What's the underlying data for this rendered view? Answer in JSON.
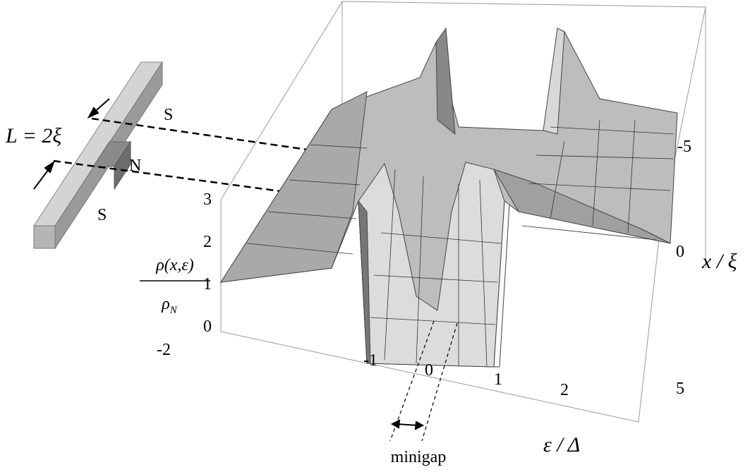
{
  "wire": {
    "top_label": "S",
    "middle_label": "N",
    "bottom_label": "S",
    "length_label": "L = 2ξ"
  },
  "z_axis": {
    "label_numerator": "ρ(x,ε)",
    "label_denominator": "ρ",
    "label_denominator_sub": "N",
    "ticks": [
      0,
      1,
      2,
      3
    ]
  },
  "energy_axis": {
    "label": "ε / Δ",
    "ticks": [
      -2,
      -1,
      0,
      1,
      2
    ]
  },
  "position_axis": {
    "label": "x / ξ",
    "ticks": [
      -5,
      0,
      5
    ]
  },
  "annotation": "minigap"
}
